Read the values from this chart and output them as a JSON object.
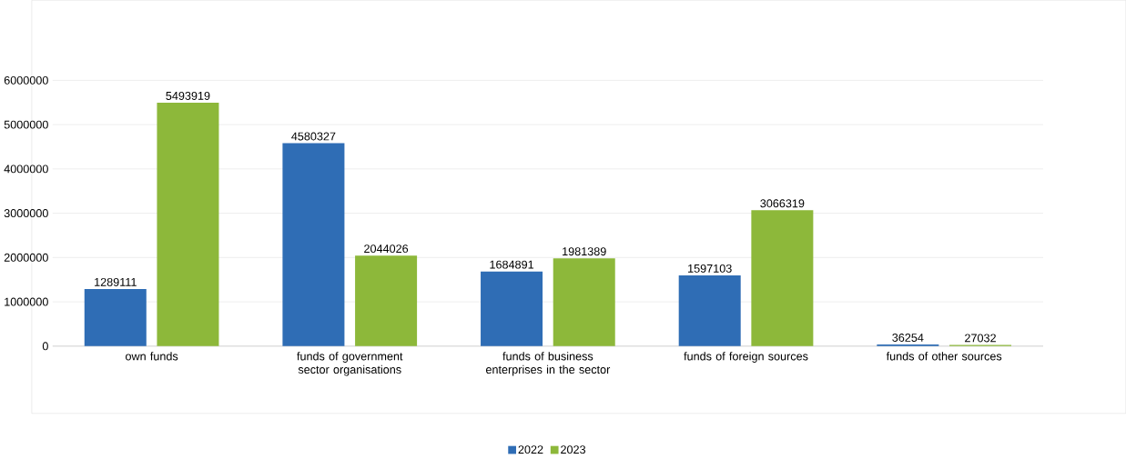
{
  "chart_data": {
    "type": "bar",
    "categories": [
      "own funds",
      "funds of government sector organisations",
      "funds of business enterprises in the sector",
      "funds of foreign sources",
      "funds of other sources"
    ],
    "series": [
      {
        "name": "2022",
        "color": "#2f6db5",
        "values": [
          1289111,
          4580327,
          1684891,
          1597103,
          36254
        ]
      },
      {
        "name": "2023",
        "color": "#8db83a",
        "values": [
          5493919,
          2044026,
          1981389,
          3066319,
          27032
        ]
      }
    ],
    "ylim": [
      0,
      6000000
    ],
    "yticks": [
      0,
      1000000,
      2000000,
      3000000,
      4000000,
      5000000,
      6000000
    ],
    "grid": "y",
    "legend": "bottom",
    "data_labels": true
  }
}
